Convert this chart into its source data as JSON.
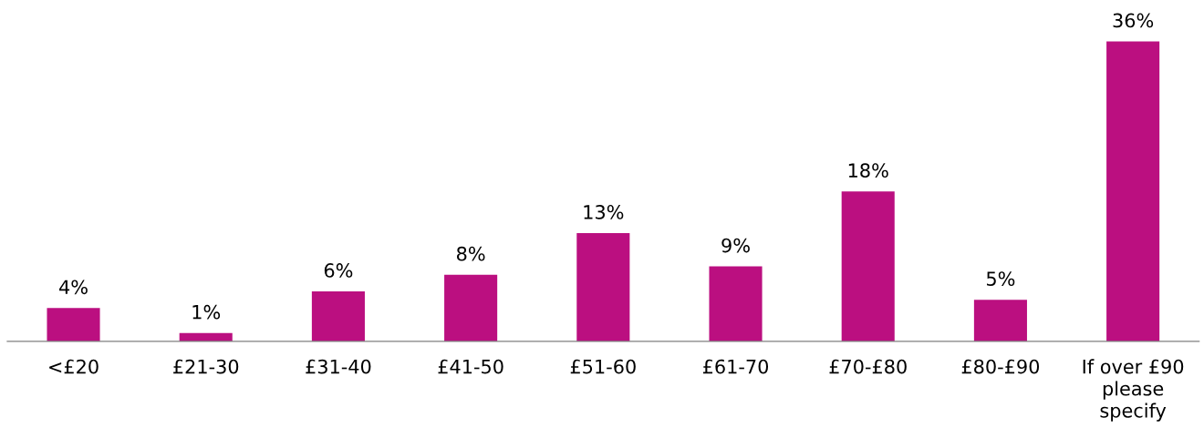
{
  "chart_data": {
    "type": "bar",
    "categories": [
      "<£20",
      "£21-30",
      "£31-40",
      "£41-50",
      "£51-60",
      "£61-70",
      "£70-£80",
      "£80-£90",
      "If over £90\nplease\nspecify"
    ],
    "values": [
      4,
      1,
      6,
      8,
      13,
      9,
      18,
      5,
      36
    ],
    "value_labels": [
      "4%",
      "1%",
      "6%",
      "8%",
      "13%",
      "9%",
      "18%",
      "5%",
      "36%"
    ],
    "color": "#bb0f80",
    "grid": false,
    "legend": false
  }
}
